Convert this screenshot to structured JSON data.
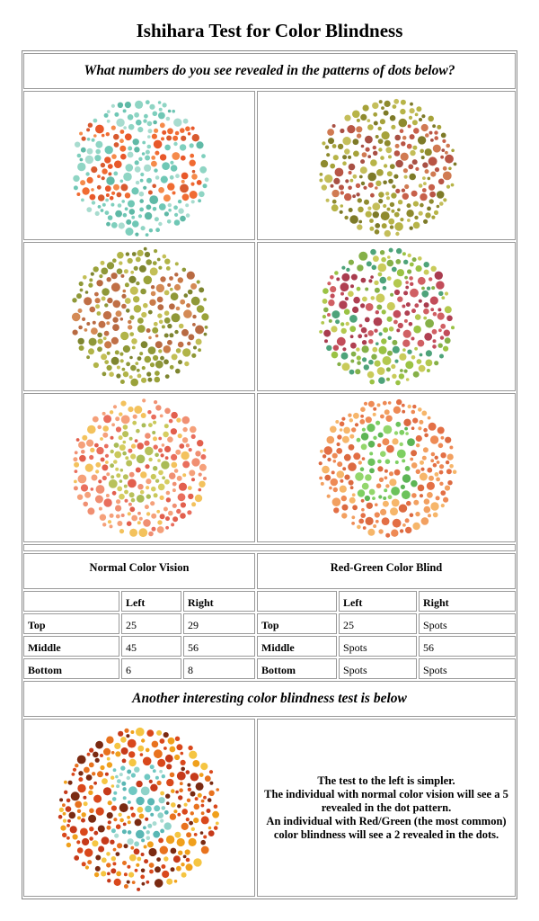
{
  "page": {
    "title": "Ishihara Test for Color Blindness",
    "question": "What numbers do you see revealed in the patterns of dots below?",
    "another_test": "Another interesting color blindness test is below"
  },
  "plates": [
    {
      "id": "top-left",
      "number": "25",
      "bg": [
        "#6fc7b5",
        "#7ecfbd",
        "#8fd5c4",
        "#5fb9a6",
        "#a8dccf"
      ],
      "fg": [
        "#f06b32",
        "#e8582a",
        "#f58a4a",
        "#d85a2f"
      ]
    },
    {
      "id": "top-right",
      "number": "29",
      "bg": [
        "#a6a23a",
        "#8e8a2e",
        "#b7b448",
        "#7d7a28",
        "#c4be5a"
      ],
      "fg": [
        "#c7604a",
        "#b85545",
        "#d07a52",
        "#a85044"
      ]
    },
    {
      "id": "middle-left",
      "number": "45",
      "bg": [
        "#9aa23a",
        "#b1b448",
        "#7e8530",
        "#c3bf56",
        "#8f9838"
      ],
      "fg": [
        "#c97a48",
        "#b86a42",
        "#d48a55",
        "#c06f46"
      ]
    },
    {
      "id": "middle-right",
      "number": "56",
      "bg": [
        "#9ac244",
        "#b3c84f",
        "#4ea37a",
        "#c9cb5a",
        "#85b048"
      ],
      "fg": [
        "#c24d5a",
        "#b04052",
        "#d05f63",
        "#a93c4e"
      ]
    },
    {
      "id": "bottom-left",
      "number": "6",
      "bg": [
        "#f08f72",
        "#e96e5d",
        "#f5a07a",
        "#f3c25d",
        "#e25f4d"
      ],
      "fg": [
        "#c9c85a",
        "#b8c15a",
        "#d6cd61",
        "#a9bb56"
      ]
    },
    {
      "id": "bottom-right",
      "number": "8",
      "bg": [
        "#ee8a55",
        "#f2a060",
        "#e36f45",
        "#f6b66a",
        "#dc6a40"
      ],
      "fg": [
        "#7ecf62",
        "#6cc25b",
        "#93d66c",
        "#5db555"
      ]
    }
  ],
  "results": {
    "normal": {
      "header": "Normal Color Vision",
      "columns": [
        "",
        "Left",
        "Right"
      ],
      "rows": [
        {
          "label": "Top",
          "left": "25",
          "right": "29"
        },
        {
          "label": "Middle",
          "left": "45",
          "right": "56"
        },
        {
          "label": "Bottom",
          "left": "6",
          "right": "8"
        }
      ]
    },
    "redgreen": {
      "header": "Red-Green Color Blind",
      "columns": [
        "",
        "Left",
        "Right"
      ],
      "rows": [
        {
          "label": "Top",
          "left": "25",
          "right": "Spots"
        },
        {
          "label": "Middle",
          "left": "Spots",
          "right": "56"
        },
        {
          "label": "Bottom",
          "left": "Spots",
          "right": "Spots"
        }
      ]
    }
  },
  "extra_plate": {
    "number": "5",
    "bg": [
      "#e8721e",
      "#f0a01c",
      "#d9481c",
      "#f5c542",
      "#c63a1a",
      "#7a2a12"
    ],
    "fg": [
      "#6fc8c2",
      "#8fd3c9",
      "#5ab7b4",
      "#a9dcd2"
    ]
  },
  "explanation": [
    "The test to the left is simpler.",
    "The individual with normal color vision will see a 5 revealed in the dot pattern.",
    "An individual with Red/Green (the most common) color blindness will see a 2 revealed in the dots."
  ]
}
